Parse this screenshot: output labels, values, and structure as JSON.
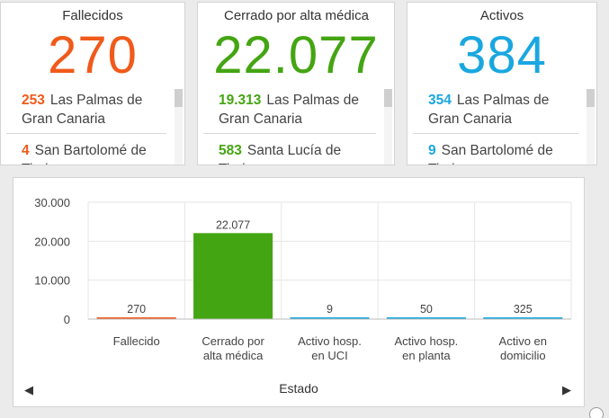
{
  "colors": {
    "fallecidos": "#f05a1a",
    "cerrados": "#44a512",
    "activos": "#1aa7e0"
  },
  "cards": [
    {
      "title": "Fallecidos",
      "value": "270",
      "items": [
        {
          "num": "253",
          "place": "Las Palmas de Gran Canaria"
        },
        {
          "num": "4",
          "place": "San Bartolomé de Tirajana"
        }
      ]
    },
    {
      "title": "Cerrado por alta médica",
      "value": "22.077",
      "items": [
        {
          "num": "19.313",
          "place": "Las Palmas de Gran Canaria"
        },
        {
          "num": "583",
          "place": "Santa Lucía de Tirajana"
        }
      ]
    },
    {
      "title": "Activos",
      "value": "384",
      "items": [
        {
          "num": "354",
          "place": "Las Palmas de Gran Canaria"
        },
        {
          "num": "9",
          "place": "San Bartolomé de Tirajana"
        }
      ]
    }
  ],
  "chart_data": {
    "type": "bar",
    "categories": [
      "Fallecido",
      "Cerrado por alta médica",
      "Activo hosp. en UCI",
      "Activo hosp. en planta",
      "Activo en domicilio"
    ],
    "category_lines": [
      [
        "Fallecido"
      ],
      [
        "Cerrado por",
        "alta médica"
      ],
      [
        "Activo hosp.",
        "en UCI"
      ],
      [
        "Activo hosp.",
        "en planta"
      ],
      [
        "Activo en",
        "domicilio"
      ]
    ],
    "values": [
      270,
      22077,
      9,
      50,
      325
    ],
    "value_labels": [
      "270",
      "22.077",
      "9",
      "50",
      "325"
    ],
    "bar_colors": [
      "#f05a1a",
      "#44a512",
      "#1aa7e0",
      "#1aa7e0",
      "#1aa7e0"
    ],
    "yticks": [
      0,
      10000,
      20000,
      30000
    ],
    "ytick_labels": [
      "0",
      "10.000",
      "20.000",
      "30.000"
    ],
    "ylim": [
      0,
      30000
    ],
    "xlabel": "Estado",
    "ylabel": "",
    "grid": true
  },
  "nav": {
    "left": "◀",
    "right": "▶"
  }
}
